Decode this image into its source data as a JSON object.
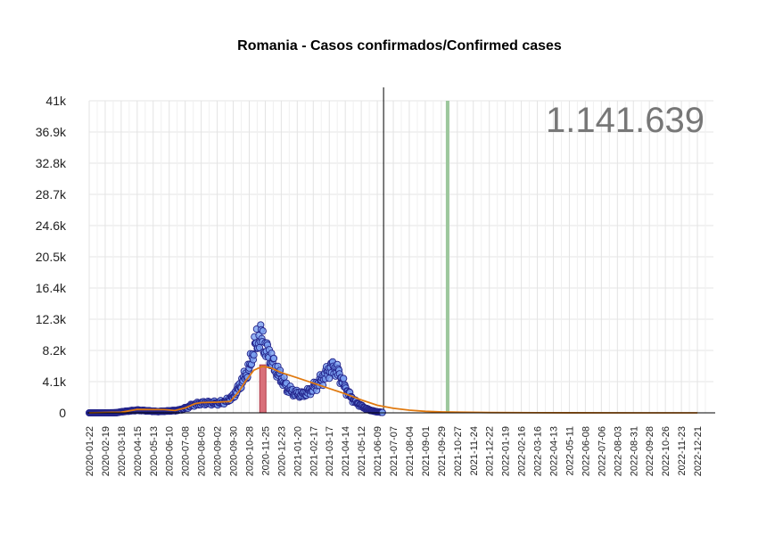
{
  "chart_data": {
    "type": "scatter",
    "title": "Romania - Casos confirmados/Confirmed cases",
    "total_label": "1.141.639",
    "ylim": [
      0,
      41000
    ],
    "y_ticks": [
      {
        "value": 0,
        "label": "0"
      },
      {
        "value": 4100,
        "label": "4.1k"
      },
      {
        "value": 8200,
        "label": "8.2k"
      },
      {
        "value": 12300,
        "label": "12.3k"
      },
      {
        "value": 16400,
        "label": "16.4k"
      },
      {
        "value": 20500,
        "label": "20.5k"
      },
      {
        "value": 24600,
        "label": "24.6k"
      },
      {
        "value": 28700,
        "label": "28.7k"
      },
      {
        "value": 32800,
        "label": "32.8k"
      },
      {
        "value": 36900,
        "label": "36.9k"
      },
      {
        "value": 41000,
        "label": "41k"
      }
    ],
    "x_ticks": [
      "2020-01-22",
      "2020-02-19",
      "2020-03-18",
      "2020-04-15",
      "2020-05-13",
      "2020-06-10",
      "2020-07-08",
      "2020-08-05",
      "2020-09-02",
      "2020-09-30",
      "2020-10-28",
      "2020-11-25",
      "2020-12-23",
      "2021-01-20",
      "2021-02-17",
      "2021-03-17",
      "2021-04-14",
      "2021-05-12",
      "2021-06-09",
      "2021-07-07",
      "2021-08-04",
      "2021-09-01",
      "2021-09-29",
      "2021-10-27",
      "2021-11-24",
      "2021-12-22",
      "2022-01-19",
      "2022-02-16",
      "2022-03-16",
      "2022-04-13",
      "2022-05-11",
      "2022-06-08",
      "2022-07-06",
      "2022-08-03",
      "2022-08-31",
      "2022-09-28",
      "2022-10-26",
      "2022-11-23",
      "2022-12-21"
    ],
    "grid": true,
    "legend": "none",
    "x_start": "2020-01-22",
    "x_end": "2023-01-18",
    "today_line": "2021-06-20",
    "marker_line": "2021-10-10",
    "peak_bar": {
      "date": "2020-11-20",
      "value": 6300
    },
    "daily_observations": [
      [
        "2020-01-22",
        0
      ],
      [
        "2020-02-26",
        0
      ],
      [
        "2020-03-10",
        20
      ],
      [
        "2020-03-20",
        150
      ],
      [
        "2020-04-01",
        250
      ],
      [
        "2020-04-15",
        350
      ],
      [
        "2020-05-01",
        280
      ],
      [
        "2020-05-20",
        170
      ],
      [
        "2020-06-10",
        250
      ],
      [
        "2020-06-25",
        330
      ],
      [
        "2020-07-08",
        600
      ],
      [
        "2020-07-22",
        1050
      ],
      [
        "2020-08-05",
        1250
      ],
      [
        "2020-08-20",
        1300
      ],
      [
        "2020-09-02",
        1250
      ],
      [
        "2020-09-15",
        1400
      ],
      [
        "2020-09-30",
        2100
      ],
      [
        "2020-10-10",
        3300
      ],
      [
        "2020-10-20",
        4700
      ],
      [
        "2020-10-28",
        5800
      ],
      [
        "2020-11-05",
        8400
      ],
      [
        "2020-11-12",
        9600
      ],
      [
        "2020-11-18",
        10000
      ],
      [
        "2020-11-25",
        8400
      ],
      [
        "2020-12-02",
        7500
      ],
      [
        "2020-12-10",
        6200
      ],
      [
        "2020-12-17",
        5200
      ],
      [
        "2020-12-23",
        4600
      ],
      [
        "2021-01-01",
        3400
      ],
      [
        "2021-01-10",
        2800
      ],
      [
        "2021-01-20",
        2500
      ],
      [
        "2021-01-30",
        2400
      ],
      [
        "2021-02-10",
        2800
      ],
      [
        "2021-02-20",
        3500
      ],
      [
        "2021-03-01",
        4200
      ],
      [
        "2021-03-10",
        5000
      ],
      [
        "2021-03-17",
        5700
      ],
      [
        "2021-03-25",
        6000
      ],
      [
        "2021-04-01",
        5400
      ],
      [
        "2021-04-08",
        4400
      ],
      [
        "2021-04-14",
        3300
      ],
      [
        "2021-04-22",
        2300
      ],
      [
        "2021-05-01",
        1500
      ],
      [
        "2021-05-12",
        900
      ],
      [
        "2021-05-22",
        500
      ],
      [
        "2021-06-01",
        250
      ],
      [
        "2021-06-10",
        120
      ],
      [
        "2021-06-18",
        60
      ]
    ],
    "fit_curve": [
      [
        "2020-01-22",
        0
      ],
      [
        "2020-03-18",
        80
      ],
      [
        "2020-04-15",
        450
      ],
      [
        "2020-06-01",
        420
      ],
      [
        "2020-06-20",
        300
      ],
      [
        "2020-07-08",
        650
      ],
      [
        "2020-07-25",
        1200
      ],
      [
        "2020-08-05",
        1350
      ],
      [
        "2020-09-02",
        1400
      ],
      [
        "2020-09-25",
        1500
      ],
      [
        "2020-10-10",
        2800
      ],
      [
        "2020-10-22",
        4200
      ],
      [
        "2020-11-05",
        5600
      ],
      [
        "2020-11-20",
        6100
      ],
      [
        "2020-12-05",
        5900
      ],
      [
        "2020-12-23",
        5300
      ],
      [
        "2021-01-20",
        4600
      ],
      [
        "2021-02-17",
        3900
      ],
      [
        "2021-03-17",
        3200
      ],
      [
        "2021-04-14",
        2500
      ],
      [
        "2021-05-12",
        1700
      ],
      [
        "2021-06-09",
        1000
      ],
      [
        "2021-07-07",
        600
      ],
      [
        "2021-08-04",
        350
      ],
      [
        "2021-09-01",
        200
      ],
      [
        "2021-10-01",
        120
      ],
      [
        "2021-11-01",
        80
      ],
      [
        "2021-12-22",
        40
      ],
      [
        "2022-03-16",
        15
      ],
      [
        "2022-08-31",
        5
      ],
      [
        "2022-12-21",
        0
      ]
    ]
  }
}
